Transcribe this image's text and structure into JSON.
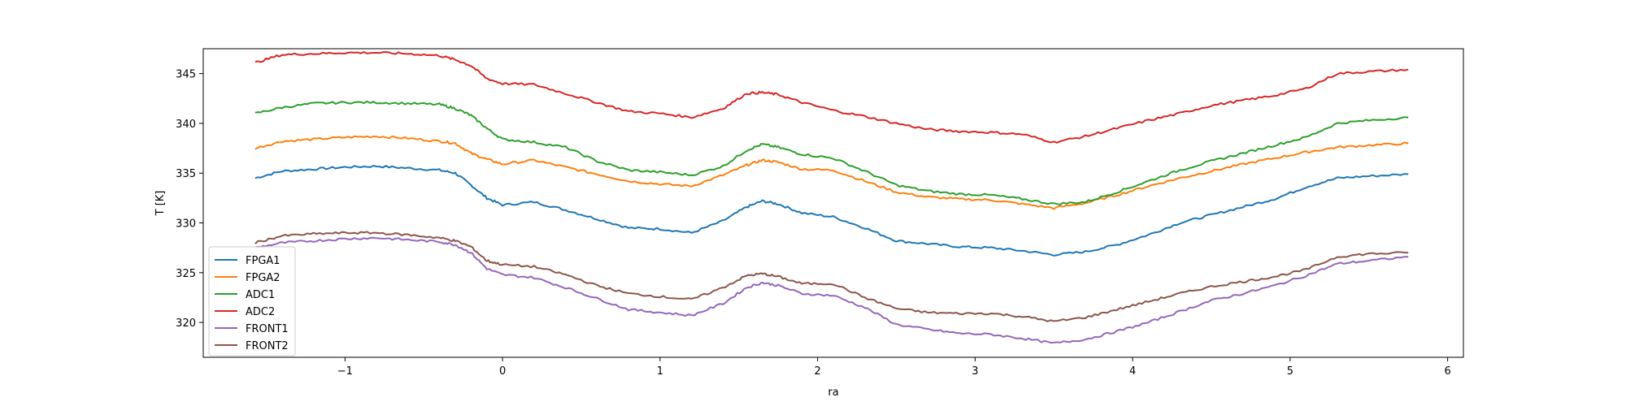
{
  "chart_data": {
    "type": "line",
    "xlabel": "ra",
    "ylabel": "T [K]",
    "xlim": [
      -1.9,
      6.1
    ],
    "ylim": [
      316.5,
      347.5
    ],
    "xticks": [
      -1,
      0,
      1,
      2,
      3,
      4,
      5,
      6
    ],
    "xtick_labels": [
      "−1",
      "0",
      "1",
      "2",
      "3",
      "4",
      "5",
      "6"
    ],
    "yticks": [
      320,
      325,
      330,
      335,
      340,
      345
    ],
    "ytick_labels": [
      "320",
      "325",
      "330",
      "335",
      "340",
      "345"
    ],
    "grid": false,
    "legend_position": "lower-left",
    "x": [
      -1.57,
      -1.4,
      -1.2,
      -1.0,
      -0.8,
      -0.6,
      -0.4,
      -0.3,
      -0.2,
      -0.1,
      0.0,
      0.2,
      0.4,
      0.6,
      0.8,
      1.0,
      1.2,
      1.4,
      1.55,
      1.65,
      1.75,
      1.9,
      2.1,
      2.3,
      2.5,
      2.7,
      2.9,
      3.1,
      3.3,
      3.5,
      3.7,
      3.9,
      4.1,
      4.3,
      4.5,
      4.7,
      4.9,
      5.1,
      5.3,
      5.5,
      5.75
    ],
    "series": [
      {
        "name": "FPGA1",
        "color": "#1f77b4",
        "values": [
          334.5,
          335.2,
          335.4,
          335.6,
          335.7,
          335.5,
          335.3,
          335.0,
          333.8,
          332.5,
          331.8,
          332.1,
          331.3,
          330.4,
          329.5,
          329.4,
          329.0,
          330.2,
          331.6,
          332.2,
          331.9,
          331.0,
          330.6,
          329.5,
          328.2,
          327.9,
          327.6,
          327.5,
          327.2,
          326.8,
          327.1,
          327.8,
          328.8,
          330.0,
          330.8,
          331.6,
          332.4,
          333.6,
          334.5,
          334.7,
          334.9
        ]
      },
      {
        "name": "FPGA2",
        "color": "#ff7f0e",
        "values": [
          337.5,
          338.2,
          338.4,
          338.6,
          338.7,
          338.5,
          338.2,
          338.0,
          337.0,
          336.4,
          335.9,
          336.3,
          335.6,
          334.9,
          334.2,
          333.9,
          333.7,
          334.8,
          335.8,
          336.3,
          336.1,
          335.4,
          335.3,
          334.2,
          333.1,
          332.6,
          332.4,
          332.3,
          331.9,
          331.5,
          332.0,
          332.8,
          333.7,
          334.5,
          335.2,
          335.9,
          336.5,
          337.1,
          337.6,
          337.8,
          338.0
        ]
      },
      {
        "name": "ADC1",
        "color": "#2ca02c",
        "values": [
          341.0,
          341.6,
          342.0,
          342.1,
          342.1,
          342.0,
          341.9,
          341.5,
          340.8,
          339.5,
          338.4,
          338.1,
          337.6,
          336.2,
          335.3,
          335.1,
          334.8,
          335.7,
          337.3,
          337.9,
          337.6,
          336.9,
          336.5,
          335.2,
          333.8,
          333.2,
          332.9,
          332.8,
          332.4,
          331.9,
          332.1,
          333.1,
          334.2,
          335.3,
          336.2,
          337.0,
          337.8,
          338.6,
          340.0,
          340.3,
          340.6
        ]
      },
      {
        "name": "ADC2",
        "color": "#d62728",
        "values": [
          346.1,
          346.9,
          347.0,
          347.1,
          347.1,
          347.0,
          346.8,
          346.4,
          345.8,
          344.5,
          344.0,
          343.9,
          343.0,
          342.1,
          341.2,
          341.0,
          340.6,
          341.5,
          343.0,
          343.1,
          342.9,
          342.1,
          341.3,
          340.7,
          340.0,
          339.4,
          339.2,
          339.1,
          338.9,
          338.1,
          338.7,
          339.5,
          340.3,
          341.0,
          341.8,
          342.3,
          342.8,
          343.5,
          345.0,
          345.2,
          345.4
        ]
      },
      {
        "name": "FRONT1",
        "color": "#9467bd",
        "values": [
          327.5,
          328.0,
          328.2,
          328.4,
          328.5,
          328.3,
          328.1,
          327.8,
          327.0,
          325.4,
          324.8,
          324.5,
          323.5,
          322.4,
          321.3,
          321.0,
          320.7,
          321.9,
          323.5,
          324.0,
          323.7,
          322.9,
          322.7,
          321.5,
          319.8,
          319.3,
          318.9,
          318.8,
          318.4,
          317.9,
          318.3,
          319.1,
          320.0,
          321.1,
          322.2,
          322.9,
          323.7,
          324.7,
          325.9,
          326.2,
          326.6
        ]
      },
      {
        "name": "FRONT2",
        "color": "#8c564b",
        "values": [
          328.0,
          328.7,
          328.9,
          329.0,
          329.0,
          328.8,
          328.5,
          328.2,
          327.6,
          326.2,
          325.8,
          325.6,
          324.8,
          323.7,
          322.9,
          322.6,
          322.3,
          323.5,
          324.7,
          324.9,
          324.6,
          323.9,
          323.9,
          322.5,
          321.4,
          321.0,
          320.9,
          320.9,
          320.6,
          320.1,
          320.5,
          321.3,
          322.1,
          322.9,
          323.6,
          324.1,
          324.6,
          325.3,
          326.6,
          326.9,
          327.0
        ]
      }
    ]
  }
}
